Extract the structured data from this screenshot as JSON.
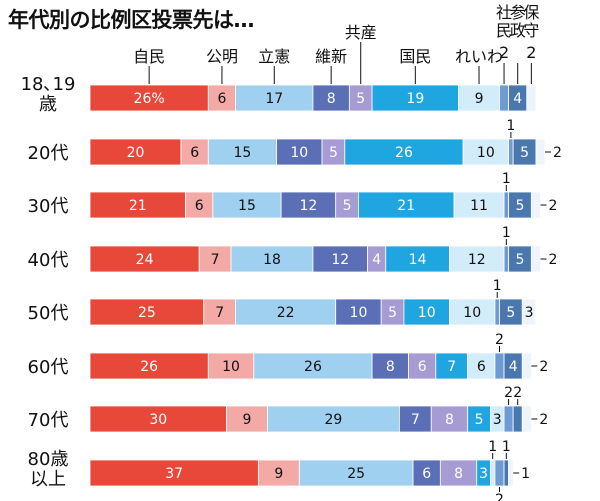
{
  "title": "年代別の比例区投票先は…",
  "chart_data": {
    "type": "bar",
    "stacked": true,
    "orientation": "horizontal",
    "title": "年代別の比例区投票先は…",
    "parties": [
      {
        "name": "自民",
        "color": "#e8483a",
        "text_color": "#ffffff"
      },
      {
        "name": "公明",
        "color": "#f3a9a6",
        "text_color": "#111111"
      },
      {
        "name": "立憲",
        "color": "#9fd0ef",
        "text_color": "#111111"
      },
      {
        "name": "維新",
        "color": "#5b6fb6",
        "text_color": "#ffffff"
      },
      {
        "name": "共産",
        "color": "#a69bd2",
        "text_color": "#ffffff"
      },
      {
        "name": "国民",
        "color": "#1fa6e0",
        "text_color": "#ffffff"
      },
      {
        "name": "れいわ",
        "color": "#d2ecfa",
        "text_color": "#111111"
      },
      {
        "name": "社民",
        "color": "#6e9bd6",
        "text_color": "#ffffff"
      },
      {
        "name": "参政",
        "color": "#4a77ae",
        "text_color": "#ffffff"
      },
      {
        "name": "保守",
        "color": "#eef4fb",
        "text_color": "#111111"
      }
    ],
    "rows": [
      {
        "age": [
          "18､19",
          "歳"
        ],
        "values": [
          26,
          6,
          17,
          8,
          5,
          19,
          9,
          2,
          4,
          2
        ],
        "labels": [
          "26%",
          "6",
          "17",
          "8",
          "5",
          "19",
          "9",
          "",
          "4",
          ""
        ]
      },
      {
        "age": [
          "20代"
        ],
        "values": [
          20,
          6,
          15,
          10,
          5,
          26,
          10,
          1,
          5,
          2
        ],
        "labels": [
          "20",
          "6",
          "15",
          "10",
          "5",
          "26",
          "10",
          "",
          "5",
          ""
        ],
        "callouts": [
          {
            "text": "1",
            "index": 7,
            "pos": "above"
          },
          {
            "text": "2",
            "index": 9,
            "pos": "right"
          }
        ]
      },
      {
        "age": [
          "30代"
        ],
        "values": [
          21,
          6,
          15,
          12,
          5,
          21,
          11,
          1,
          5,
          2
        ],
        "labels": [
          "21",
          "6",
          "15",
          "12",
          "5",
          "21",
          "11",
          "",
          "5",
          ""
        ],
        "callouts": [
          {
            "text": "1",
            "index": 7,
            "pos": "above"
          },
          {
            "text": "2",
            "index": 9,
            "pos": "right"
          }
        ]
      },
      {
        "age": [
          "40代"
        ],
        "values": [
          24,
          7,
          18,
          12,
          4,
          14,
          12,
          1,
          5,
          2
        ],
        "labels": [
          "24",
          "7",
          "18",
          "12",
          "4",
          "14",
          "12",
          "",
          "5",
          ""
        ],
        "callouts": [
          {
            "text": "1",
            "index": 7,
            "pos": "above"
          },
          {
            "text": "2",
            "index": 9,
            "pos": "right"
          }
        ]
      },
      {
        "age": [
          "50代"
        ],
        "values": [
          25,
          7,
          22,
          10,
          5,
          10,
          10,
          1,
          5,
          3
        ],
        "labels": [
          "25",
          "7",
          "22",
          "10",
          "5",
          "10",
          "10",
          "",
          "5",
          "3"
        ],
        "callouts": [
          {
            "text": "1",
            "index": 7,
            "pos": "above"
          }
        ]
      },
      {
        "age": [
          "60代"
        ],
        "values": [
          26,
          10,
          26,
          8,
          6,
          7,
          6,
          2,
          4,
          2
        ],
        "labels": [
          "26",
          "10",
          "26",
          "8",
          "6",
          "7",
          "6",
          "",
          "4",
          ""
        ],
        "callouts": [
          {
            "text": "2",
            "index": 7,
            "pos": "above"
          },
          {
            "text": "2",
            "index": 9,
            "pos": "right"
          }
        ]
      },
      {
        "age": [
          "70代"
        ],
        "values": [
          30,
          9,
          29,
          7,
          8,
          5,
          3,
          2,
          2,
          2
        ],
        "labels": [
          "30",
          "9",
          "29",
          "7",
          "8",
          "5",
          "3",
          "",
          "",
          ""
        ],
        "callouts": [
          {
            "text": "2",
            "index": 7,
            "pos": "above"
          },
          {
            "text": "2",
            "index": 8,
            "pos": "above"
          },
          {
            "text": "2",
            "index": 9,
            "pos": "right"
          }
        ]
      },
      {
        "age": [
          "80歳",
          "以上"
        ],
        "values": [
          37,
          9,
          25,
          6,
          8,
          3,
          1,
          2,
          1,
          1
        ],
        "labels": [
          "37",
          "9",
          "25",
          "6",
          "8",
          "3",
          "",
          "",
          "",
          ""
        ],
        "callouts": [
          {
            "text": "1",
            "index": 6,
            "pos": "above"
          },
          {
            "text": "1",
            "index": 8,
            "pos": "above"
          },
          {
            "text": "2",
            "index": 7,
            "pos": "below"
          },
          {
            "text": "1",
            "index": 9,
            "pos": "right"
          }
        ]
      }
    ],
    "header_labels": [
      {
        "text": "自民",
        "index": 0
      },
      {
        "text": "公明",
        "index": 1
      },
      {
        "text": "立憲",
        "index": 2
      },
      {
        "text": "維新",
        "index": 3
      },
      {
        "text": "共産",
        "index": 4,
        "raised": true
      },
      {
        "text": "国民",
        "index": 5
      },
      {
        "text": "れいわ",
        "index": 6
      },
      {
        "text": "社民",
        "index": 7,
        "vertical": true,
        "value": "2"
      },
      {
        "text": "参政",
        "index": 8,
        "vertical": true
      },
      {
        "text": "保守",
        "index": 9,
        "vertical": true,
        "value": "2"
      }
    ]
  }
}
